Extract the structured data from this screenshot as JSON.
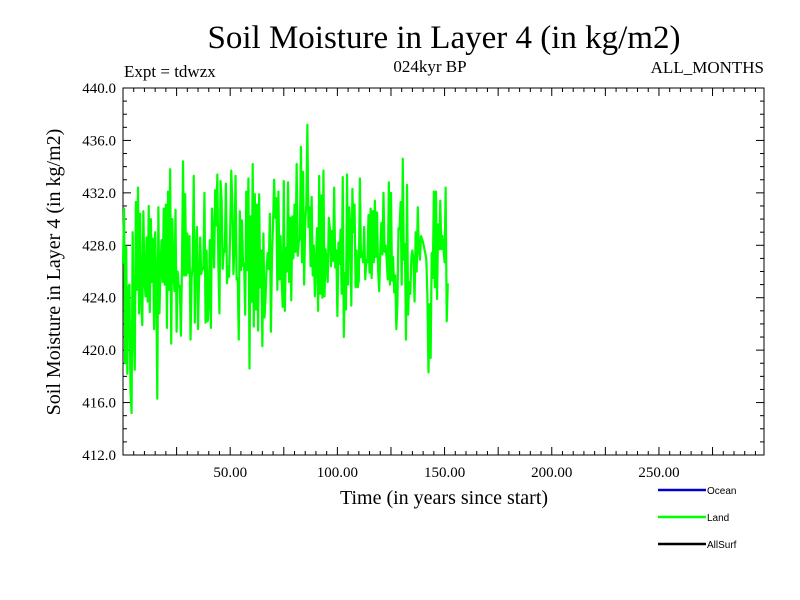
{
  "chart_data": {
    "type": "line",
    "title": "Soil Moisture in Layer 4 (in kg/m2)",
    "subtitle_left": "Expt = tdwzx",
    "subtitle_center": "024kyr BP",
    "subtitle_right": "ALL_MONTHS",
    "xlabel": "Time (in years since start)",
    "ylabel": "Soil Moisture in Layer 4 (in kg/m2)",
    "xlim": [
      0,
      299
    ],
    "ylim": [
      412.0,
      440.0
    ],
    "xticks": [
      50,
      100,
      150,
      200,
      250
    ],
    "xtick_labels": [
      "50.00",
      "100.00",
      "150.00",
      "200.00",
      "250.00"
    ],
    "yticks": [
      412,
      416,
      420,
      424,
      428,
      432,
      436,
      440
    ],
    "ytick_labels": [
      "412.0",
      "416.0",
      "420.0",
      "424.0",
      "428.0",
      "432.0",
      "436.0",
      "440.0"
    ],
    "grid": false,
    "legend_position": "bottom-right",
    "series": [
      {
        "name": "Ocean",
        "color": "#0000cc",
        "values": []
      },
      {
        "name": "Land",
        "color": "#00ff00",
        "x_start": 0,
        "x_step": 0.5,
        "values": [
          426.6,
          430.8,
          419.0,
          427.9,
          418.2,
          424.8,
          425.0,
          416.9,
          415.2,
          429.0,
          421.5,
          418.5,
          431.3,
          424.6,
          432.4,
          422.8,
          430.4,
          423.9,
          421.9,
          430.6,
          425.4,
          424.1,
          428.6,
          423.7,
          431.0,
          422.9,
          430.0,
          425.2,
          428.5,
          421.6,
          429.0,
          425.2,
          416.3,
          430.9,
          422.8,
          426.3,
          428.4,
          425.2,
          430.8,
          425.0,
          431.1,
          421.7,
          432.1,
          424.6,
          433.8,
          420.5,
          430.0,
          426.2,
          424.5,
          430.7,
          421.4,
          426.0,
          424.8,
          424.9,
          421.1,
          426.2,
          434.4,
          425.7,
          431.9,
          425.7,
          428.9,
          425.9,
          428.7,
          420.8,
          425.5,
          426.5,
          433.3,
          422.1,
          427.2,
          429.4,
          421.6,
          425.6,
          428.6,
          425.8,
          426.3,
          426.2,
          432.0,
          422.1,
          427.6,
          422.2,
          423.6,
          428.4,
          421.7,
          430.8,
          429.0,
          426.3,
          432.2,
          429.5,
          433.4,
          426.4,
          422.8,
          432.9,
          431.4,
          426.2,
          427.7,
          427.5,
          432.7,
          425.1,
          426.4,
          425.6,
          429.2,
          433.7,
          431.2,
          425.8,
          427.9,
          433.3,
          425.4,
          425.5,
          420.8,
          430.6,
          426.1,
          429.9,
          426.4,
          426.6,
          422.7,
          432.1,
          426.1,
          433.1,
          418.6,
          430.2,
          423.7,
          434.2,
          421.8,
          431.9,
          423.1,
          431.1,
          421.5,
          431.9,
          424.8,
          427.6,
          420.3,
          428.9,
          422.5,
          424.0,
          426.4,
          427.4,
          426.2,
          430.4,
          421.4,
          427.2,
          429.7,
          433.0,
          430.1,
          431.6,
          424.6,
          432.1,
          425.4,
          428.7,
          425.4,
          423.3,
          432.9,
          423.0,
          427.8,
          426.0,
          432.8,
          425.2,
          430.1,
          423.8,
          430.2,
          427.0,
          431.1,
          427.5,
          434.2,
          427.2,
          428.3,
          428.5,
          435.5,
          426.7,
          433.6,
          425.0,
          429.8,
          431.0,
          437.2,
          429.4,
          430.9,
          426.4,
          431.7,
          425.7,
          428.0,
          424.1,
          426.8,
          429.3,
          423.0,
          433.3,
          424.3,
          431.8,
          424.0,
          433.7,
          424.1,
          427.7,
          426.6,
          425.2,
          430.1,
          429.3,
          426.4,
          429.1,
          426.8,
          432.4,
          426.3,
          427.6,
          422.6,
          428.2,
          426.6,
          429.2,
          424.3,
          433.2,
          421.0,
          425.9,
          423.1,
          433.4,
          425.0,
          430.9,
          429.5,
          423.4,
          432.3,
          429.0,
          431.1,
          424.8,
          427.6,
          424.8,
          425.3,
          433.1,
          427.1,
          427.5,
          426.7,
          429.4,
          425.4,
          426.9,
          426.7,
          430.3,
          425.9,
          430.8,
          425.5,
          430.6,
          426.7,
          431.4,
          427.1,
          430.5,
          426.1,
          424.5,
          427.5,
          429.7,
          427.3,
          432.0,
          427.5,
          428.0,
          426.9,
          425.4,
          432.8,
          425.0,
          432.0,
          425.3,
          427.1,
          424.4,
          425.7,
          421.6,
          423.5,
          429.3,
          429.2,
          431.3,
          425.0,
          434.6,
          426.9,
          428.1,
          420.8,
          432.6,
          422.7,
          425.2,
          424.3,
          427.0,
          427.6,
          426.8,
          423.7,
          429.0,
          426.0,
          430.9,
          427.7,
          426.9,
          428.7,
          428.5,
          428.2,
          427.8,
          427.4,
          426.9,
          424.0,
          418.3,
          423.5,
          419.4,
          427.4,
          425.5,
          432.1,
          424.8,
          432.1,
          423.9,
          429.6,
          427.7,
          431.4,
          427.7,
          428.7,
          427.7,
          426.7,
          432.4,
          422.2,
          425.1
        ]
      },
      {
        "name": "AllSurf",
        "color": "#000000",
        "values": []
      }
    ]
  }
}
